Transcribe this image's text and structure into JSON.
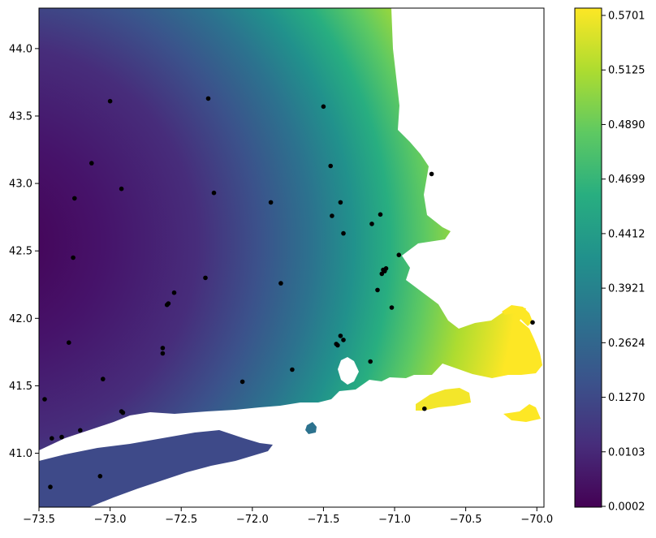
{
  "chart_data": {
    "type": "heatmap",
    "title": "",
    "xlabel": "",
    "ylabel": "",
    "xlim": [
      -73.5,
      -69.95
    ],
    "ylim": [
      40.6,
      44.3
    ],
    "x_ticks": [
      -73.5,
      -73.0,
      -72.5,
      -72.0,
      -71.5,
      -71.0,
      -70.5,
      -70.0
    ],
    "x_tick_labels": [
      "−73.5",
      "−73.0",
      "−72.5",
      "−72.0",
      "−71.5",
      "−71.0",
      "−70.5",
      "−70.0"
    ],
    "y_ticks": [
      41.0,
      41.5,
      42.0,
      42.5,
      43.0,
      43.5,
      44.0
    ],
    "y_tick_labels": [
      "41.0",
      "41.5",
      "42.0",
      "42.5",
      "43.0",
      "43.5",
      "44.0"
    ],
    "colorbar": {
      "colormap": "viridis",
      "tick_labels": [
        "0.0002",
        "0.0103",
        "0.1270",
        "0.2624",
        "0.3921",
        "0.4412",
        "0.4699",
        "0.4890",
        "0.5125",
        "0.5701"
      ],
      "colors": [
        "#440154",
        "#472d7b",
        "#3b528b",
        "#2c728e",
        "#21918c",
        "#28ae80",
        "#5ec962",
        "#addc30",
        "#fde725"
      ]
    },
    "points": [
      {
        "lon": -73.0,
        "lat": 43.61
      },
      {
        "lon": -72.31,
        "lat": 43.63
      },
      {
        "lon": -71.5,
        "lat": 43.57
      },
      {
        "lon": -73.13,
        "lat": 43.15
      },
      {
        "lon": -71.45,
        "lat": 43.13
      },
      {
        "lon": -70.74,
        "lat": 43.07
      },
      {
        "lon": -72.92,
        "lat": 42.96
      },
      {
        "lon": -73.25,
        "lat": 42.89
      },
      {
        "lon": -72.27,
        "lat": 42.93
      },
      {
        "lon": -71.87,
        "lat": 42.86
      },
      {
        "lon": -71.38,
        "lat": 42.86
      },
      {
        "lon": -71.44,
        "lat": 42.76
      },
      {
        "lon": -71.1,
        "lat": 42.77
      },
      {
        "lon": -71.16,
        "lat": 42.7
      },
      {
        "lon": -71.36,
        "lat": 42.63
      },
      {
        "lon": -73.26,
        "lat": 42.45
      },
      {
        "lon": -70.97,
        "lat": 42.47
      },
      {
        "lon": -71.06,
        "lat": 42.37
      },
      {
        "lon": -71.07,
        "lat": 42.35
      },
      {
        "lon": -71.09,
        "lat": 42.33
      },
      {
        "lon": -71.08,
        "lat": 42.36
      },
      {
        "lon": -71.8,
        "lat": 42.26
      },
      {
        "lon": -72.33,
        "lat": 42.3
      },
      {
        "lon": -71.12,
        "lat": 42.21
      },
      {
        "lon": -72.55,
        "lat": 42.19
      },
      {
        "lon": -72.6,
        "lat": 42.1
      },
      {
        "lon": -72.59,
        "lat": 42.11
      },
      {
        "lon": -71.02,
        "lat": 42.08
      },
      {
        "lon": -70.03,
        "lat": 41.97
      },
      {
        "lon": -71.38,
        "lat": 41.87
      },
      {
        "lon": -71.36,
        "lat": 41.84
      },
      {
        "lon": -73.29,
        "lat": 41.82
      },
      {
        "lon": -71.41,
        "lat": 41.81
      },
      {
        "lon": -71.4,
        "lat": 41.8
      },
      {
        "lon": -72.63,
        "lat": 41.78
      },
      {
        "lon": -72.63,
        "lat": 41.74
      },
      {
        "lon": -71.17,
        "lat": 41.68
      },
      {
        "lon": -71.72,
        "lat": 41.62
      },
      {
        "lon": -73.05,
        "lat": 41.55
      },
      {
        "lon": -72.07,
        "lat": 41.53
      },
      {
        "lon": -73.46,
        "lat": 41.4
      },
      {
        "lon": -72.92,
        "lat": 41.31
      },
      {
        "lon": -72.91,
        "lat": 41.3
      },
      {
        "lon": -70.79,
        "lat": 41.33
      },
      {
        "lon": -73.21,
        "lat": 41.17
      },
      {
        "lon": -73.34,
        "lat": 41.12
      },
      {
        "lon": -73.41,
        "lat": 41.11
      },
      {
        "lon": -73.07,
        "lat": 40.83
      },
      {
        "lon": -73.42,
        "lat": 40.75
      }
    ]
  }
}
